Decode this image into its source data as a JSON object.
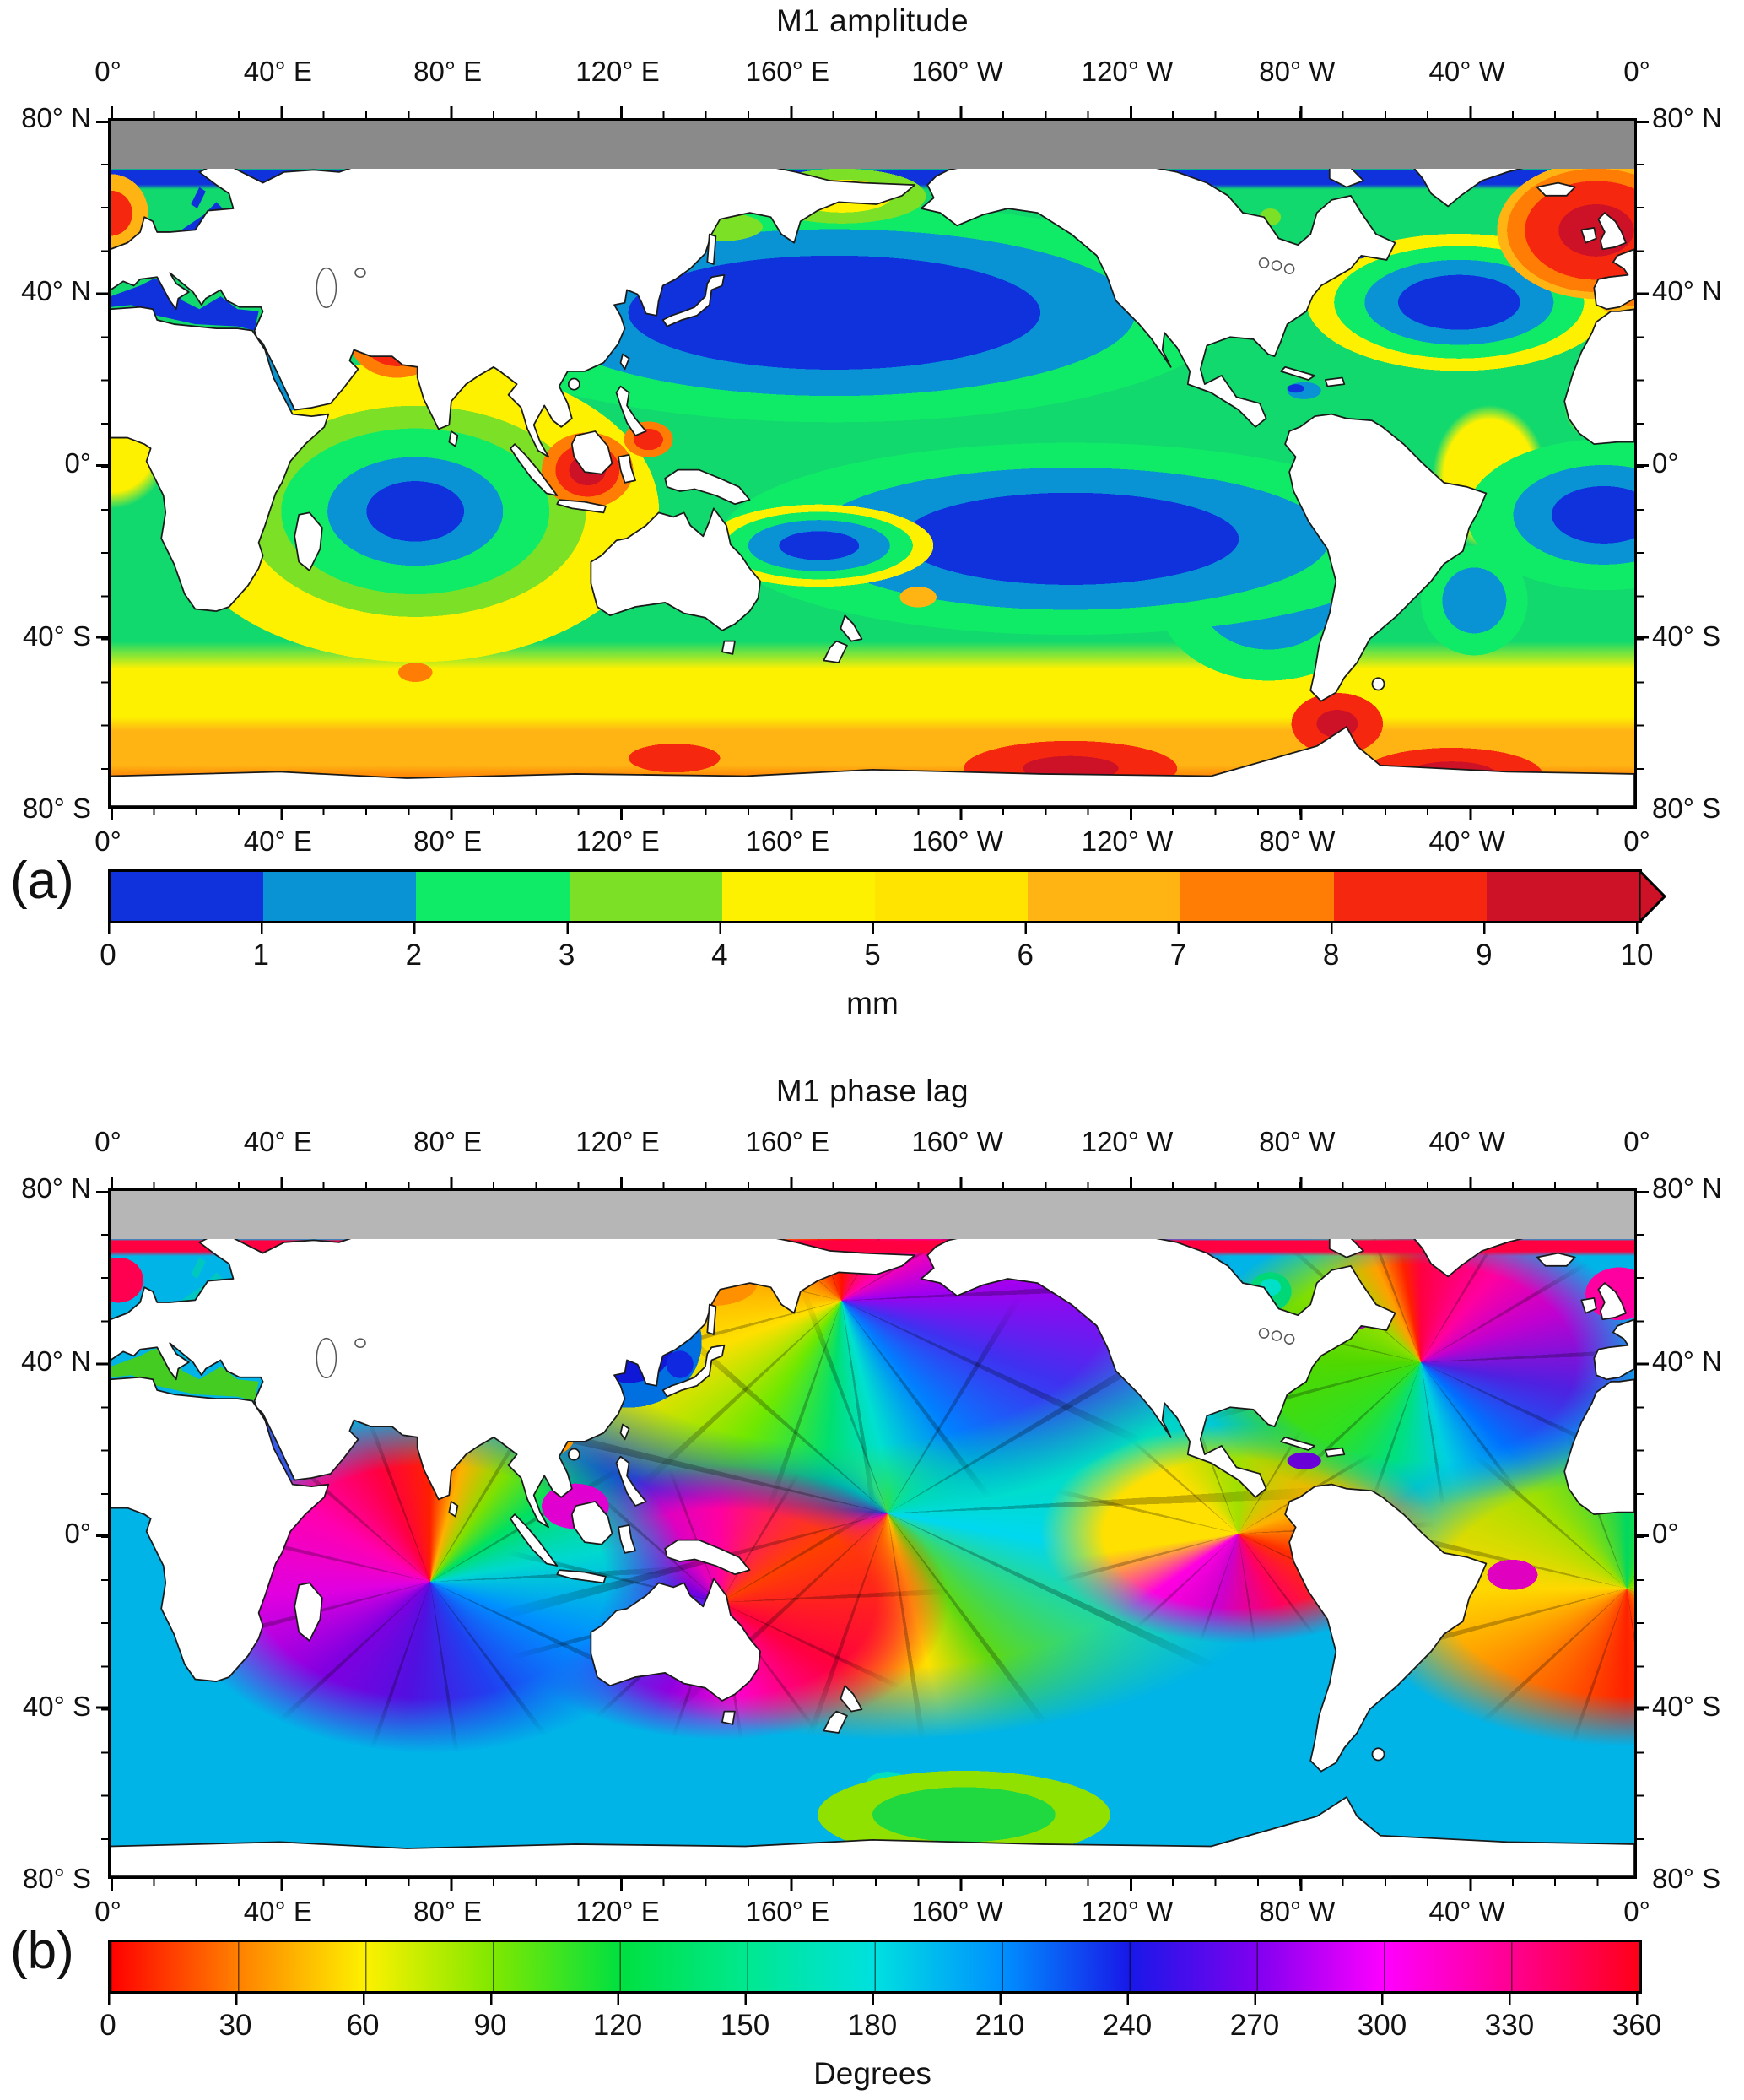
{
  "figure": {
    "panels": [
      {
        "id": "a",
        "panel_label": "(a)",
        "title": "M1 amplitude",
        "colorbar": {
          "type": "discrete",
          "unit": "mm",
          "tick_labels": [
            "0",
            "1",
            "2",
            "3",
            "4",
            "5",
            "6",
            "7",
            "8",
            "9",
            "10"
          ],
          "segment_colors": [
            "#1032dc",
            "#0992d4",
            "#10eb67",
            "#7ce026",
            "#fdf100",
            "#ffe400",
            "#ffb414",
            "#ff7d05",
            "#f5270e",
            "#cd1126"
          ],
          "arrow_color": "#cd1126",
          "has_end_arrow": true
        }
      },
      {
        "id": "b",
        "panel_label": "(b)",
        "title": "M1 phase lag",
        "colorbar": {
          "type": "continuous",
          "unit": "Degrees",
          "tick_labels": [
            "0",
            "30",
            "60",
            "90",
            "120",
            "150",
            "180",
            "210",
            "240",
            "270",
            "300",
            "330",
            "360"
          ],
          "gradient_stops": [
            "#ff0000 0%",
            "#ff8000 8.33%",
            "#fdf100 16.67%",
            "#80e800 25%",
            "#00e040 33.33%",
            "#00e890 41.67%",
            "#00e0e0 50%",
            "#0090ff 58.33%",
            "#1818e8 66.67%",
            "#8000f0 75%",
            "#ff00ff 83.33%",
            "#ff0090 91.67%",
            "#ff0018 100%"
          ],
          "has_end_arrow": false
        }
      }
    ],
    "axes": {
      "lon_labels": [
        "0°",
        "40° E",
        "80° E",
        "120° E",
        "160° E",
        "160° W",
        "120° W",
        "80° W",
        "40° W",
        "0°"
      ],
      "lat_labels": [
        "80° N",
        "40° N",
        "0°",
        "40° S",
        "80° S"
      ],
      "lon_range_deg": [
        0,
        360
      ],
      "lat_range_deg": [
        -80,
        80
      ],
      "major_tick_interval_deg": 40,
      "minor_tick_interval_deg": 10
    },
    "no_data_band": "gray band poleward of ~70° N in both panels",
    "land_color": "#ffffff",
    "gray_band_color_a": "#8a8a8a",
    "gray_band_color_b": "#b6b6b6"
  },
  "chart_data": [
    {
      "type": "heatmap",
      "subtype": "filled-contour world map (plate carrée, 0°–360°E, 80°N–80°S)",
      "title": "M1 amplitude",
      "ylabel": "latitude",
      "xlabel": "longitude",
      "colorbar": {
        "label": "mm",
        "min": 0,
        "max": 10,
        "contour_interval": 1,
        "colors": [
          "#1032dc",
          "#0992d4",
          "#10eb67",
          "#7ce026",
          "#fdf100",
          "#ffe400",
          "#ffb414",
          "#ff7d05",
          "#f5270e",
          "#cd1126"
        ]
      },
      "legend_position": "below map, horizontal, arrowed right end (>10 mm)",
      "features": [
        {
          "region": "central North Pacific (~25°N, 180°)",
          "value_mm": "<1 (minimum)"
        },
        {
          "region": "central South Pacific (~30°S, 130°W)",
          "value_mm": "<1 (minimum)"
        },
        {
          "region": "south Indian Ocean (~30°S, 75°E)",
          "value_mm": "<1 (minimum)"
        },
        {
          "region": "South Atlantic (~40°S, 10°W)",
          "value_mm": "<1 (minimum)"
        },
        {
          "region": "subtropical North Atlantic (~30°N, 50°W)",
          "value_mm": "<2 (minimum)"
        },
        {
          "region": "Arabian Sea",
          "value_mm": ">9 (maximum)"
        },
        {
          "region": "NW Australian shelf / Timor Sea",
          "value_mm": ">9 (maximum)"
        },
        {
          "region": "NE Atlantic near British Isles and Norwegian Sea",
          "value_mm": "8–10 (maximum)"
        },
        {
          "region": "Southern Ocean near 60°S (several patches)",
          "value_mm": "7–10"
        },
        {
          "region": "mid-ocean background",
          "value_mm": "2–4 (green)"
        },
        {
          "region": "Mediterranean, Black Sea, Baltic, Sea of Japan",
          "value_mm": "~0–1 (blue)"
        }
      ]
    },
    {
      "type": "heatmap",
      "subtype": "phase map with amphidromic systems (plate carrée, 0°–360°E, 80°N–80°S)",
      "title": "M1 phase lag",
      "ylabel": "latitude",
      "xlabel": "longitude",
      "colorbar": {
        "label": "Degrees",
        "min": 0,
        "max": 360,
        "tick_interval": 30,
        "cyclic": true,
        "stops": [
          "#ff0000",
          "#ff8000",
          "#fdf100",
          "#80e800",
          "#00e040",
          "#00e890",
          "#00e0e0",
          "#0090ff",
          "#1818e8",
          "#8000f0",
          "#ff00ff",
          "#ff0090",
          "#ff0018"
        ]
      },
      "legend_position": "below map, horizontal",
      "features": [
        {
          "amphidrome": "Aleutian / NW Pacific",
          "approx_location": "~52°N, 175°E"
        },
        {
          "amphidrome": "equatorial central Pacific",
          "approx_location": "~0°, 175°W"
        },
        {
          "amphidrome": "Tasman Sea / south of Australia",
          "approx_location": "~50°S, 145°E"
        },
        {
          "amphidrome": "central Indian Ocean",
          "approx_location": "~18°S, 75°E"
        },
        {
          "amphidrome": "eastern equatorial Pacific (Galápagos)",
          "approx_location": "~2°S, 95°W"
        },
        {
          "amphidrome": "North Atlantic",
          "approx_location": "~38°N, 45°W"
        },
        {
          "amphidrome": "South Atlantic",
          "approx_location": "~40°S, 0°"
        },
        {
          "note": "phase contours drawn every 30°, radiating from amphidromic points"
        }
      ]
    }
  ]
}
